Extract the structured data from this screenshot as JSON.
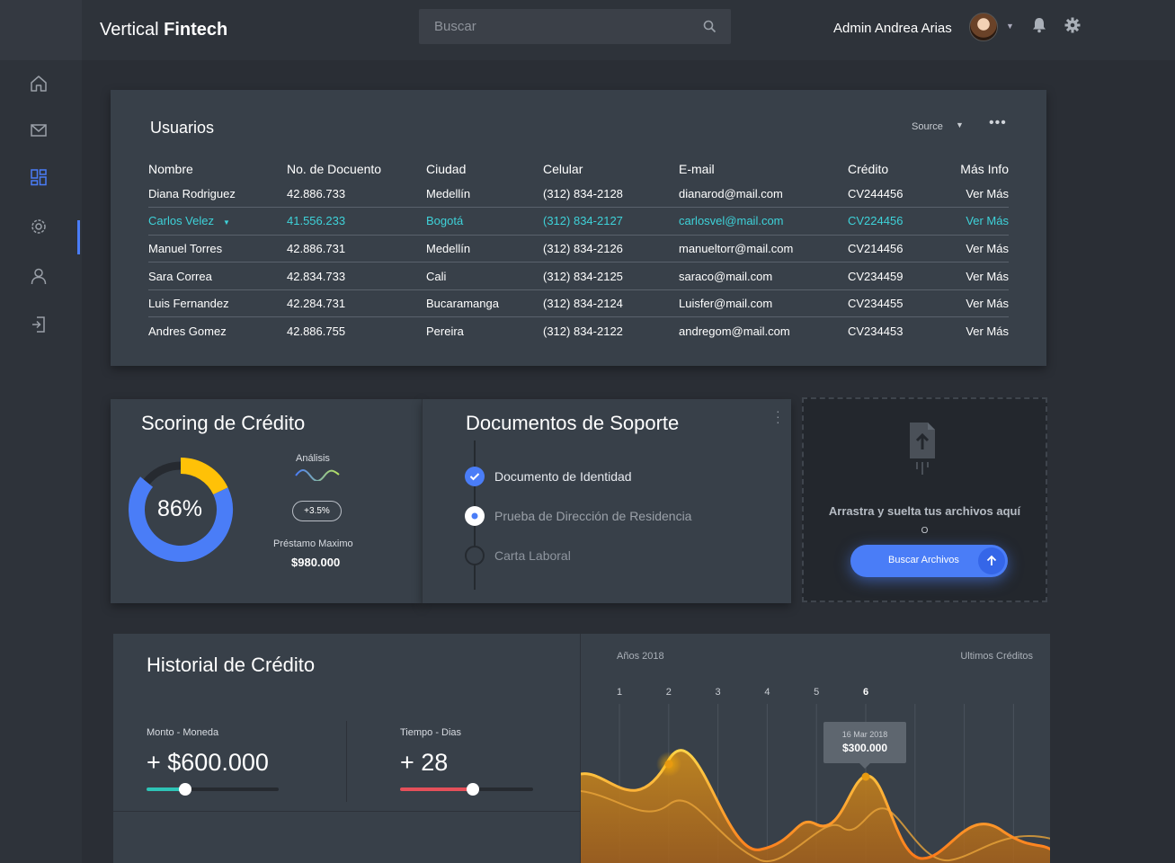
{
  "header": {
    "brand_light": "Vertical ",
    "brand_bold": "Fintech",
    "search_placeholder": "Buscar",
    "user_name": "Admin Andrea Arias"
  },
  "sidebar": {
    "items": [
      {
        "name": "home-icon",
        "active": false
      },
      {
        "name": "mail-icon",
        "active": false
      },
      {
        "name": "dashboard-icon",
        "active": true
      },
      {
        "name": "settings-icon",
        "active": false
      },
      {
        "name": "user-icon",
        "active": false
      },
      {
        "name": "logout-icon",
        "active": false
      }
    ],
    "accent": "#4a7df7"
  },
  "users": {
    "title": "Usuarios",
    "source_label": "Source",
    "menu": "•••",
    "columns": [
      "Nombre",
      "No. de Docuento",
      "Ciudad",
      "Celular",
      "E-mail",
      "Crédito",
      "Más Info"
    ],
    "rows": [
      [
        "Diana Rodriguez",
        "42.886.733",
        "Medellín",
        "(312) 834-2128",
        "dianarod@mail.com",
        "CV244456",
        "Ver Más"
      ],
      [
        "Carlos Velez",
        "41.556.233",
        "Bogotá",
        "(312) 834-2127",
        "carlosvel@mail.com",
        "CV224456",
        "Ver Más"
      ],
      [
        "Manuel Torres",
        "42.886.731",
        "Medellín",
        "(312) 834-2126",
        "manueltorr@mail.com",
        "CV214456",
        "Ver Más"
      ],
      [
        "Sara Correa",
        "42.834.733",
        "Cali",
        "(312) 834-2125",
        "saraco@mail.com",
        "CV234459",
        "Ver Más"
      ],
      [
        "Luis Fernandez",
        "42.284.731",
        "Bucaramanga",
        "(312) 834-2124",
        "Luisfer@mail.com",
        "CV234455",
        "Ver Más"
      ],
      [
        "Andres Gomez",
        "42.886.755",
        "Pereira",
        "(312) 834-2122",
        "andregom@mail.com",
        "CV234453",
        "Ver Más"
      ]
    ],
    "selected_row": 1,
    "selected_color": "#3ed2d9"
  },
  "scoring": {
    "title": "Scoring de Crédito",
    "percent_label": "86%",
    "percent": 86,
    "analysis_label": "Análisis",
    "badge": "+3.5%",
    "loan_label": "Préstamo Maximo",
    "loan_value": "$980.000",
    "colors": {
      "primary": "#4a7df7",
      "accent": "#ffc107",
      "track": "#262a30"
    }
  },
  "docs": {
    "title": "Documentos de Soporte",
    "steps": [
      {
        "label": "Documento de Identidad",
        "state": "done"
      },
      {
        "label": "Prueba de Dirección de Residencia",
        "state": "current"
      },
      {
        "label": "Carta Laboral",
        "state": "pending"
      }
    ]
  },
  "upload": {
    "text": "Arrastra y suelta tus archivos aquí",
    "or": "O",
    "button_label": "Buscar Archivos"
  },
  "history": {
    "title": "Historial de Crédito",
    "amount_label": "Monto - Moneda",
    "amount_value": "+ $600.000",
    "amount_slider": 0.29,
    "amount_color": "#2ec4b6",
    "time_label": "Tiempo - Dias",
    "time_value": "+ 28",
    "time_slider": 0.55,
    "time_color": "#e5505a"
  },
  "chart": {
    "years_label": "Años 2018",
    "recent_label": "Ultimos Créditos",
    "ticks": [
      "1",
      "2",
      "3",
      "4",
      "5",
      "6"
    ],
    "active_tick": 5,
    "tooltip_date": "16 Mar 2018",
    "tooltip_value": "$300.000",
    "line_color": "#ffc107",
    "fill_color": "#e8890c"
  }
}
